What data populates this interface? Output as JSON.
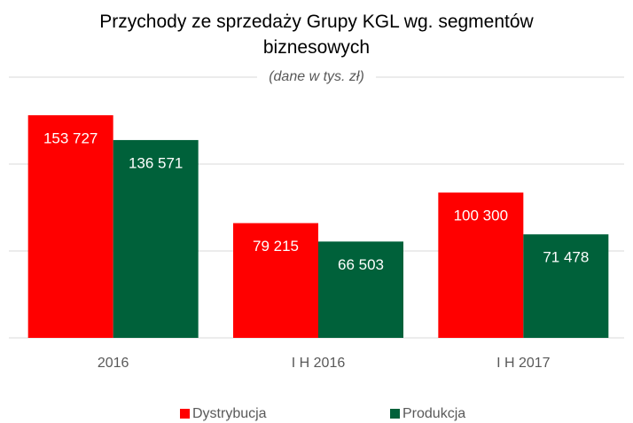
{
  "chart_data": {
    "type": "bar",
    "title": "Przychody ze sprzedaży Grupy KGL wg. segmentów biznesowych",
    "subtitle": "(dane w tys. zł)",
    "categories": [
      "2016",
      "I H 2016",
      "I H 2017"
    ],
    "series": [
      {
        "name": "Dystrybucja",
        "color": "#ff0000",
        "values": [
          153727,
          79215,
          100300
        ],
        "value_labels": [
          "153 727",
          "79 215",
          "100 300"
        ]
      },
      {
        "name": "Produkcja",
        "color": "#00613a",
        "values": [
          136571,
          66503,
          71478
        ],
        "value_labels": [
          "136 571",
          "66 503",
          "71 478"
        ]
      }
    ],
    "ylim": [
      0,
      180000
    ],
    "yticks": [
      0,
      60000,
      120000,
      180000
    ],
    "grid": true,
    "legend": "bottom"
  }
}
